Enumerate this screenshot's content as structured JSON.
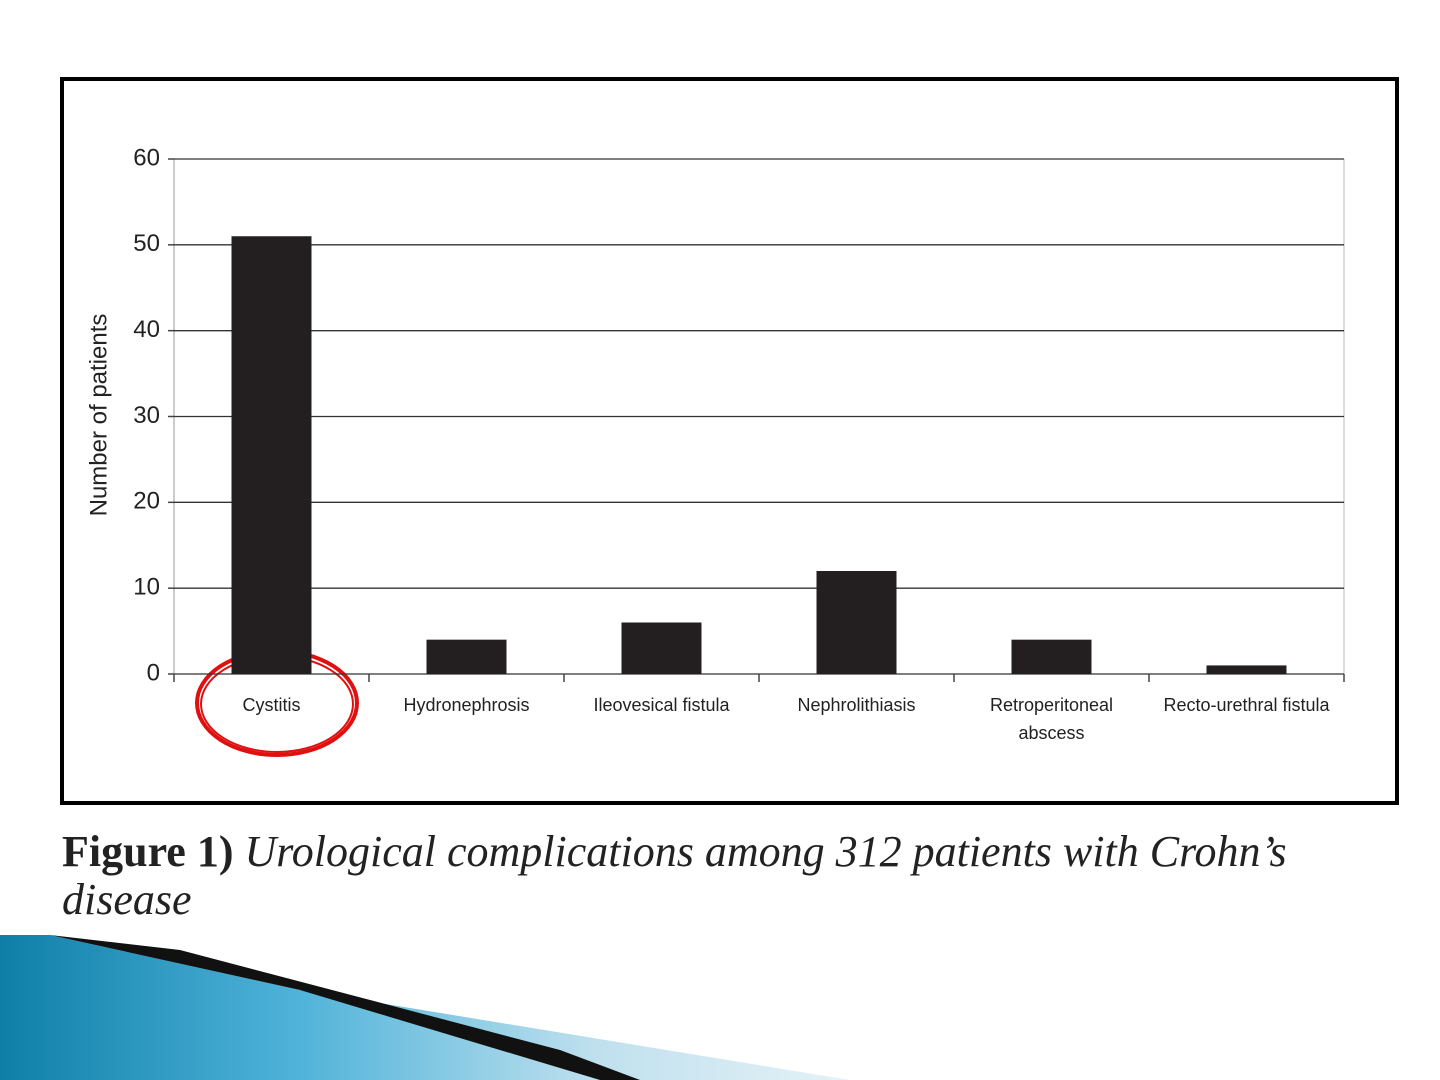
{
  "chart_data": {
    "type": "bar",
    "ylabel": "Number of patients",
    "categories": [
      "Cystitis",
      "Hydronephrosis",
      "Ileovesical fistula",
      "Nephrolithiasis",
      "Retroperitoneal abscess",
      "Recto-urethral fistula"
    ],
    "values": [
      51,
      4,
      6,
      12,
      4,
      1
    ],
    "color": "#231f20",
    "ylim": [
      0,
      60
    ],
    "yticks": [
      0,
      10,
      20,
      30,
      40,
      50,
      60
    ],
    "grid": true
  },
  "caption": {
    "label": "Figure 1)",
    "text": "Urological complications among 312 patients with Crohn’s disease"
  }
}
